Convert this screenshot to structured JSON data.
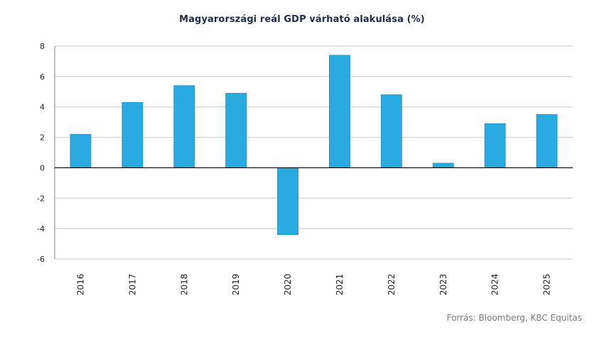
{
  "chart_data": {
    "type": "bar",
    "title": "Magyarországi reál GDP várható alakulása (%)",
    "xlabel": "",
    "ylabel": "",
    "categories": [
      "2016",
      "2017",
      "2018",
      "2019",
      "2020",
      "2021",
      "2022",
      "2023",
      "2024",
      "2025"
    ],
    "values": [
      2.2,
      4.3,
      5.4,
      4.9,
      -4.4,
      7.4,
      4.8,
      0.3,
      2.9,
      3.5
    ],
    "ylim": [
      -6,
      8
    ],
    "yticks": [
      8,
      6,
      4,
      2,
      0,
      -2,
      -4,
      -6
    ],
    "ytick_labels": [
      "8",
      "6",
      "4",
      "2",
      "0",
      "-2",
      "-4",
      "-6"
    ],
    "grid": true,
    "legend": "none",
    "colors": {
      "bar": "#29abe2",
      "bar_edge": "#1f8fc0",
      "grid": "#c8c8c8",
      "axis": "#000000"
    }
  },
  "source": "Forrás: Bloomberg, KBC Equitas"
}
